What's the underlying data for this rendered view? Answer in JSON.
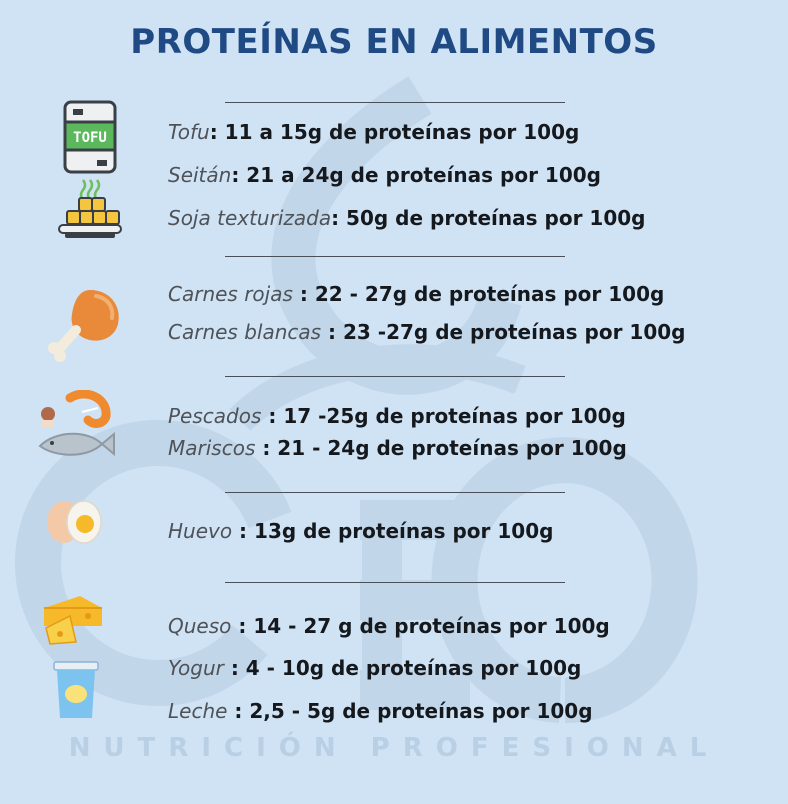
{
  "title": "PROTEÍNAS EN ALIMENTOS",
  "watermark": {
    "logo": "GEO",
    "subtitle": "NUTRICIÓN PROFESIONAL"
  },
  "groups": [
    {
      "icons": [
        "tofu-package-icon",
        "seitan-tray-icon"
      ],
      "tofu_label": "TOFU",
      "items": [
        {
          "name": "Tofu",
          "sep": ":",
          "value": " 11 a 15g de proteínas por 100g"
        },
        {
          "name": "Seitán",
          "sep": ":",
          "value": " 21 a 24g de proteínas por 100g"
        },
        {
          "name": "Soja texturizada",
          "sep": ":",
          "value": " 50g de proteínas por 100g"
        }
      ]
    },
    {
      "icons": [
        "chicken-drumstick-icon"
      ],
      "items": [
        {
          "name": "Carnes rojas",
          "sep": " :",
          "value": " 22 - 27g de proteínas por 100g"
        },
        {
          "name": "Carnes blancas",
          "sep": " :",
          "value": " 23 -27g de proteínas por 100g"
        }
      ]
    },
    {
      "icons": [
        "seafood-fish-icon"
      ],
      "items": [
        {
          "name": "Pescados",
          "sep": " :",
          "value": " 17 -25g de proteínas por 100g"
        },
        {
          "name": "Mariscos",
          "sep": " :",
          "value": " 21 - 24g de proteínas por 100g"
        }
      ]
    },
    {
      "icons": [
        "egg-icon"
      ],
      "items": [
        {
          "name": "Huevo",
          "sep": " :",
          "value": " 13g de proteínas por 100g"
        }
      ]
    },
    {
      "icons": [
        "cheese-icon",
        "yogurt-cup-icon"
      ],
      "items": [
        {
          "name": "Queso",
          "sep": " :",
          "value": " 14 - 27 g de proteínas por 100g"
        },
        {
          "name": "Yogur",
          "sep": " :",
          "value": " 4 - 10g de proteínas por 100g"
        },
        {
          "name": "Leche",
          "sep": " :",
          "value": " 2,5 - 5g de proteínas por 100g"
        }
      ]
    }
  ]
}
